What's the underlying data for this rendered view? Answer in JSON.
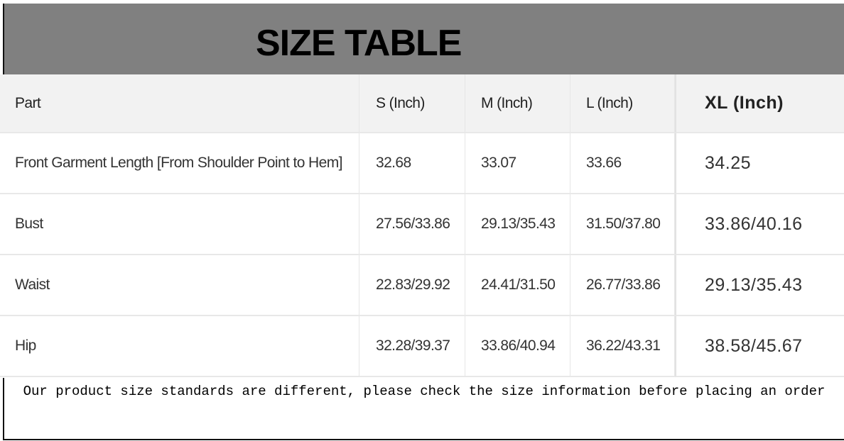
{
  "title": "SIZE TABLE",
  "table": {
    "headers": [
      "Part",
      "S (Inch)",
      "M (Inch)",
      "L (Inch)",
      "XL  (Inch)"
    ],
    "rows": [
      [
        "Front Garment Length [From Shoulder Point to Hem]",
        "32.68",
        "33.07",
        "33.66",
        "34.25"
      ],
      [
        "Bust",
        "27.56/33.86",
        "29.13/35.43",
        "31.50/37.80",
        "33.86/40.16"
      ],
      [
        "Waist",
        "22.83/29.92",
        "24.41/31.50",
        "26.77/33.86",
        "29.13/35.43"
      ],
      [
        "Hip",
        "32.28/39.37",
        "33.86/40.94",
        "36.22/43.31",
        "38.58/45.67"
      ]
    ]
  },
  "footer_note": "Our product size standards are different, please check the size information before placing an order"
}
